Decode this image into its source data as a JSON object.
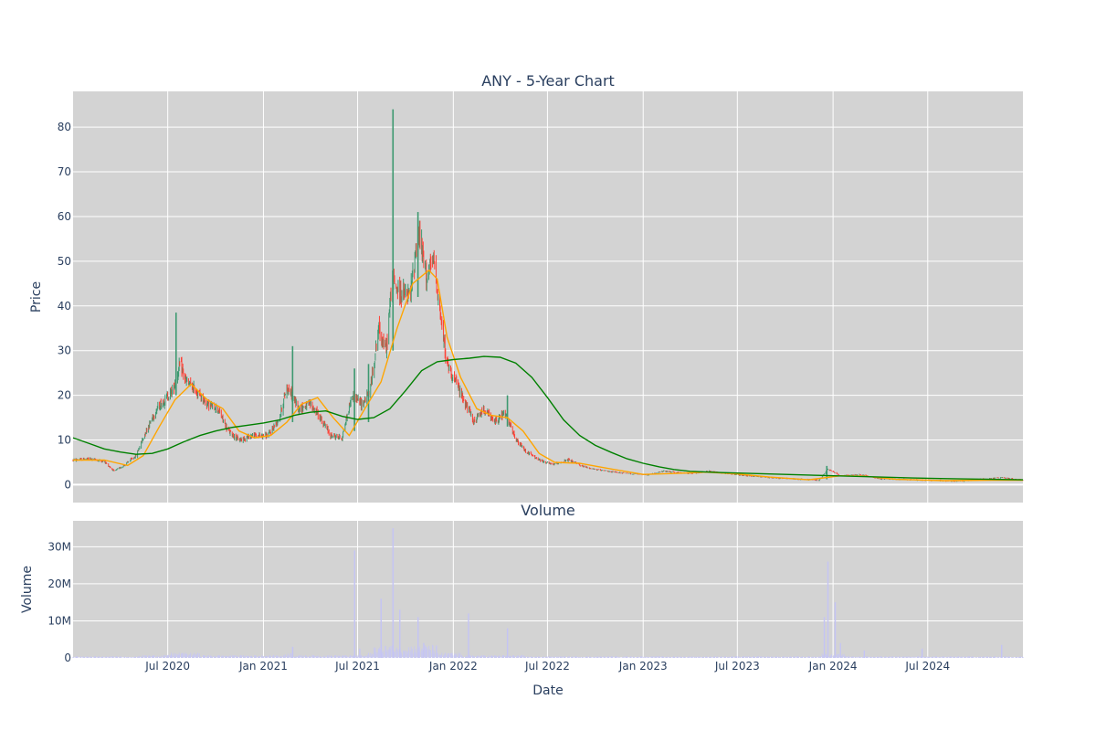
{
  "chart_data": [
    {
      "type": "candlestick",
      "title": "ANY - 5-Year Chart",
      "ylabel": "Price",
      "ylim": [
        -4,
        88
      ],
      "yticks": [
        0,
        10,
        20,
        30,
        40,
        50,
        60,
        70,
        80
      ],
      "x_range": [
        "2020-01-01",
        "2024-12-31"
      ],
      "grid": true,
      "background": "#d3d3d3",
      "colors": {
        "up": "#3d9970",
        "down": "#ff4136",
        "ma_short": "#ffa500",
        "ma_long": "#008000"
      },
      "price_path": [
        [
          "2020-01-01",
          5.5
        ],
        [
          "2020-02-01",
          5.8
        ],
        [
          "2020-03-01",
          5.2
        ],
        [
          "2020-03-20",
          3.0
        ],
        [
          "2020-04-10",
          4.5
        ],
        [
          "2020-05-01",
          6.5
        ],
        [
          "2020-05-20",
          12
        ],
        [
          "2020-06-10",
          17
        ],
        [
          "2020-06-25",
          19
        ],
        [
          "2020-07-10",
          21
        ],
        [
          "2020-07-25",
          27
        ],
        [
          "2020-08-05",
          23
        ],
        [
          "2020-08-25",
          21
        ],
        [
          "2020-09-15",
          18
        ],
        [
          "2020-10-05",
          17
        ],
        [
          "2020-10-25",
          12
        ],
        [
          "2020-11-15",
          10
        ],
        [
          "2020-12-10",
          11
        ],
        [
          "2021-01-10",
          11
        ],
        [
          "2021-02-01",
          15
        ],
        [
          "2021-02-15",
          22
        ],
        [
          "2021-03-10",
          17
        ],
        [
          "2021-04-01",
          18
        ],
        [
          "2021-04-20",
          15
        ],
        [
          "2021-05-10",
          11
        ],
        [
          "2021-06-01",
          10.5
        ],
        [
          "2021-06-20",
          20
        ],
        [
          "2021-07-10",
          18
        ],
        [
          "2021-07-25",
          21
        ],
        [
          "2021-08-10",
          35
        ],
        [
          "2021-08-25",
          30
        ],
        [
          "2021-09-05",
          46
        ],
        [
          "2021-09-20",
          43
        ],
        [
          "2021-10-10",
          42
        ],
        [
          "2021-10-25",
          57
        ],
        [
          "2021-11-10",
          47
        ],
        [
          "2021-11-25",
          50
        ],
        [
          "2021-12-10",
          35
        ],
        [
          "2021-12-20",
          27
        ],
        [
          "2022-01-05",
          23
        ],
        [
          "2022-01-25",
          18
        ],
        [
          "2022-02-10",
          14
        ],
        [
          "2022-03-01",
          17
        ],
        [
          "2022-03-20",
          14
        ],
        [
          "2022-04-10",
          16
        ],
        [
          "2022-05-01",
          10
        ],
        [
          "2022-05-20",
          7.5
        ],
        [
          "2022-06-15",
          5.5
        ],
        [
          "2022-07-10",
          4.5
        ],
        [
          "2022-08-10",
          5.5
        ],
        [
          "2022-09-10",
          4
        ],
        [
          "2022-10-10",
          3.2
        ],
        [
          "2022-12-01",
          2.5
        ],
        [
          "2023-01-10",
          2.2
        ],
        [
          "2023-02-10",
          3.0
        ],
        [
          "2023-04-01",
          2.5
        ],
        [
          "2023-05-10",
          3.0
        ],
        [
          "2023-07-01",
          2.2
        ],
        [
          "2023-09-01",
          1.6
        ],
        [
          "2023-11-01",
          1.2
        ],
        [
          "2023-12-05",
          1.0
        ],
        [
          "2023-12-22",
          3.5
        ],
        [
          "2024-01-15",
          2.0
        ],
        [
          "2024-02-20",
          2.3
        ],
        [
          "2024-04-01",
          1.3
        ],
        [
          "2024-06-01",
          1.1
        ],
        [
          "2024-09-01",
          0.8
        ],
        [
          "2024-11-20",
          1.6
        ],
        [
          "2024-12-31",
          1.0
        ]
      ],
      "spikes": [
        [
          "2020-07-17",
          38.5,
          20
        ],
        [
          "2021-02-26",
          31,
          14
        ],
        [
          "2021-06-25",
          26,
          12
        ],
        [
          "2021-07-22",
          27,
          14
        ],
        [
          "2021-09-07",
          84,
          30
        ],
        [
          "2021-10-25",
          61,
          42
        ],
        [
          "2022-04-15",
          20,
          13
        ],
        [
          "2023-12-20",
          4.2,
          1.2
        ]
      ],
      "ma_short": [
        [
          "2020-01-01",
          5.5
        ],
        [
          "2020-03-01",
          5.5
        ],
        [
          "2020-04-15",
          4.3
        ],
        [
          "2020-05-15",
          6.5
        ],
        [
          "2020-06-15",
          13
        ],
        [
          "2020-07-15",
          19
        ],
        [
          "2020-08-15",
          22.5
        ],
        [
          "2020-09-15",
          19
        ],
        [
          "2020-10-15",
          17
        ],
        [
          "2020-11-15",
          12
        ],
        [
          "2020-12-15",
          10.5
        ],
        [
          "2021-01-15",
          11
        ],
        [
          "2021-02-15",
          14
        ],
        [
          "2021-03-15",
          18
        ],
        [
          "2021-04-15",
          19.5
        ],
        [
          "2021-05-15",
          15
        ],
        [
          "2021-06-15",
          11
        ],
        [
          "2021-07-15",
          17
        ],
        [
          "2021-08-15",
          23
        ],
        [
          "2021-09-15",
          35
        ],
        [
          "2021-10-15",
          45
        ],
        [
          "2021-11-15",
          48
        ],
        [
          "2021-12-01",
          46
        ],
        [
          "2021-12-20",
          33
        ],
        [
          "2022-01-15",
          24
        ],
        [
          "2022-02-15",
          17
        ],
        [
          "2022-03-15",
          15.5
        ],
        [
          "2022-04-15",
          15
        ],
        [
          "2022-05-15",
          12
        ],
        [
          "2022-06-15",
          7
        ],
        [
          "2022-07-15",
          5
        ],
        [
          "2022-09-01",
          4.8
        ],
        [
          "2022-11-01",
          3.5
        ],
        [
          "2023-01-01",
          2.3
        ],
        [
          "2023-03-01",
          2.5
        ],
        [
          "2023-05-01",
          2.8
        ],
        [
          "2023-07-01",
          2.4
        ],
        [
          "2023-09-01",
          1.7
        ],
        [
          "2023-11-15",
          1.1
        ],
        [
          "2024-01-15",
          2.0
        ],
        [
          "2024-03-01",
          1.9
        ],
        [
          "2024-05-01",
          1.2
        ],
        [
          "2024-08-01",
          0.9
        ],
        [
          "2024-11-01",
          1.0
        ],
        [
          "2024-12-31",
          1.0
        ]
      ],
      "ma_long": [
        [
          "2020-01-01",
          10.5
        ],
        [
          "2020-02-01",
          9.2
        ],
        [
          "2020-03-01",
          8.0
        ],
        [
          "2020-04-01",
          7.3
        ],
        [
          "2020-05-01",
          6.8
        ],
        [
          "2020-06-01",
          7.0
        ],
        [
          "2020-07-01",
          8.0
        ],
        [
          "2020-08-01",
          9.6
        ],
        [
          "2020-09-01",
          11
        ],
        [
          "2020-10-01",
          12
        ],
        [
          "2020-11-01",
          12.8
        ],
        [
          "2020-12-01",
          13.3
        ],
        [
          "2021-01-01",
          13.8
        ],
        [
          "2021-02-01",
          14.5
        ],
        [
          "2021-03-01",
          15.5
        ],
        [
          "2021-04-01",
          16.2
        ],
        [
          "2021-05-01",
          16.5
        ],
        [
          "2021-06-01",
          15.3
        ],
        [
          "2021-07-01",
          14.6
        ],
        [
          "2021-08-01",
          15
        ],
        [
          "2021-09-01",
          17
        ],
        [
          "2021-10-01",
          21
        ],
        [
          "2021-11-01",
          25.5
        ],
        [
          "2021-12-01",
          27.5
        ],
        [
          "2022-01-01",
          28
        ],
        [
          "2022-02-01",
          28.3
        ],
        [
          "2022-03-01",
          28.7
        ],
        [
          "2022-04-01",
          28.5
        ],
        [
          "2022-05-01",
          27.2
        ],
        [
          "2022-06-01",
          24
        ],
        [
          "2022-07-01",
          19.5
        ],
        [
          "2022-08-01",
          14.5
        ],
        [
          "2022-09-01",
          11
        ],
        [
          "2022-10-01",
          8.8
        ],
        [
          "2022-11-01",
          7.2
        ],
        [
          "2022-12-01",
          5.8
        ],
        [
          "2023-01-01",
          4.8
        ],
        [
          "2023-02-01",
          4.0
        ],
        [
          "2023-03-01",
          3.4
        ],
        [
          "2023-04-01",
          3.0
        ],
        [
          "2023-06-01",
          2.7
        ],
        [
          "2023-09-01",
          2.4
        ],
        [
          "2023-12-01",
          2.1
        ],
        [
          "2024-03-01",
          1.8
        ],
        [
          "2024-06-01",
          1.5
        ],
        [
          "2024-09-01",
          1.3
        ],
        [
          "2024-12-31",
          1.1
        ]
      ]
    },
    {
      "type": "bar",
      "title": "Volume",
      "xlabel": "Date",
      "ylabel": "Volume",
      "ylim": [
        0,
        37000000
      ],
      "yticks": [
        0,
        10000000,
        20000000,
        30000000
      ],
      "ytick_labels": [
        "0",
        "10M",
        "20M",
        "30M"
      ],
      "xticks": [
        "2020-07-01",
        "2021-01-01",
        "2021-07-01",
        "2022-01-01",
        "2022-07-01",
        "2023-01-01",
        "2023-07-01",
        "2024-01-01",
        "2024-07-01"
      ],
      "xtick_labels": [
        "Jul 2020",
        "Jan 2021",
        "Jul 2021",
        "Jan 2022",
        "Jul 2022",
        "Jan 2023",
        "Jul 2023",
        "Jan 2024",
        "Jul 2024"
      ],
      "grid": true,
      "background": "#d3d3d3",
      "bar_color": "#c8c8f0",
      "volume_spikes": [
        [
          "2021-02-26",
          3000000
        ],
        [
          "2021-06-25",
          29000000
        ],
        [
          "2021-07-05",
          2500000
        ],
        [
          "2021-08-15",
          16000000
        ],
        [
          "2021-09-07",
          35000000
        ],
        [
          "2021-09-20",
          13000000
        ],
        [
          "2021-10-25",
          11000000
        ],
        [
          "2021-11-05",
          4000000
        ],
        [
          "2022-01-30",
          12000000
        ],
        [
          "2022-04-15",
          8000000
        ],
        [
          "2023-12-15",
          11000000
        ],
        [
          "2023-12-22",
          26000000
        ],
        [
          "2024-01-05",
          15000000
        ],
        [
          "2024-01-15",
          4000000
        ],
        [
          "2024-03-01",
          2000000
        ],
        [
          "2024-06-20",
          2500000
        ],
        [
          "2024-11-20",
          3500000
        ]
      ]
    }
  ]
}
